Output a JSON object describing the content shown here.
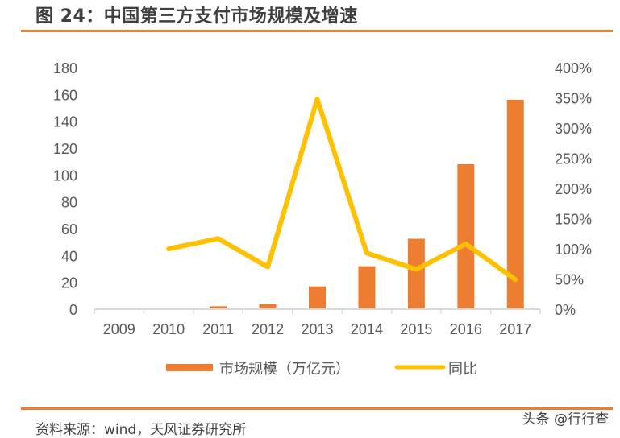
{
  "header": {
    "title": "图 24：中国第三方支付市场规模及增速"
  },
  "footer": {
    "source": "资料来源：wind，天风证券研究所",
    "brand": "头条 @行行查"
  },
  "colors": {
    "accent_rule": "#ED7D31",
    "bar": "#ED7D31",
    "line": "#FFC000",
    "axis": "#D9D9D9",
    "text": "#595959"
  },
  "legend": {
    "bar_label": "市场规模（万亿元）",
    "line_label": "同比"
  },
  "chart_data": {
    "type": "bar+line",
    "title": "中国第三方支付市场规模及增速",
    "categories": [
      "2009",
      "2010",
      "2011",
      "2012",
      "2013",
      "2014",
      "2015",
      "2016",
      "2017"
    ],
    "series": [
      {
        "name": "市场规模（万亿元）",
        "type": "bar",
        "axis": "left",
        "values": [
          0.3,
          0.5,
          2.2,
          3.8,
          17,
          32,
          52.5,
          108,
          156
        ]
      },
      {
        "name": "同比",
        "type": "line",
        "axis": "right",
        "unit": "%",
        "values": [
          null,
          100,
          117,
          70,
          348,
          93,
          66,
          108,
          49
        ]
      }
    ],
    "y_left": {
      "min": 0,
      "max": 180,
      "step": 20,
      "ticks": [
        "0",
        "20",
        "40",
        "60",
        "80",
        "100",
        "120",
        "140",
        "160",
        "180"
      ]
    },
    "y_right": {
      "min": 0,
      "max": 400,
      "step": 50,
      "ticks": [
        "0%",
        "50%",
        "100%",
        "150%",
        "200%",
        "250%",
        "300%",
        "350%",
        "400%"
      ]
    },
    "xlabel": "",
    "ylabel": "",
    "grid": false,
    "legend_position": "bottom"
  }
}
